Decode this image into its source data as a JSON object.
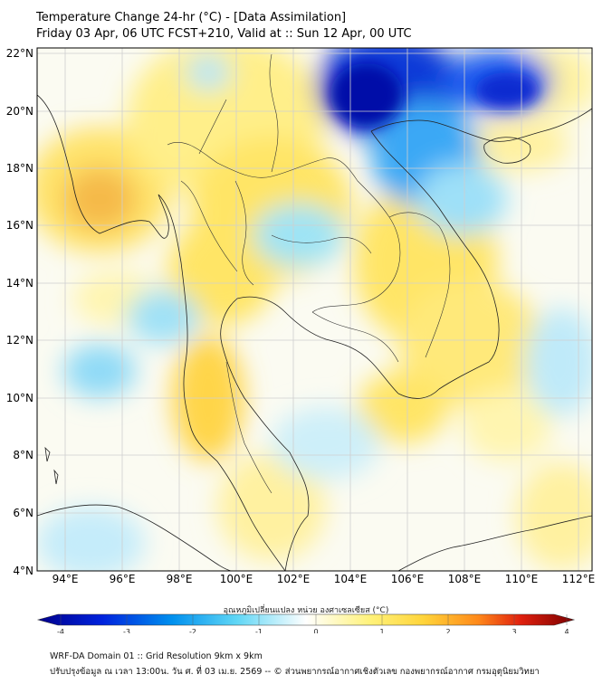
{
  "header": {
    "title": "Temperature Change 24-hr (°C) - [Data Assimilation]",
    "subtitle": "Friday 03 Apr, 06 UTC FCST+210, Valid at :: Sun 12 Apr, 00 UTC"
  },
  "map": {
    "lat_labels": [
      "22°N",
      "20°N",
      "18°N",
      "16°N",
      "14°N",
      "12°N",
      "10°N",
      "8°N",
      "6°N",
      "4°N"
    ],
    "lon_labels": [
      "94°E",
      "96°E",
      "98°E",
      "100°E",
      "102°E",
      "104°E",
      "106°E",
      "108°E",
      "110°E",
      "112°E"
    ],
    "lat_range": [
      4,
      22
    ],
    "lon_range": [
      93,
      112.5
    ],
    "gridlines": true
  },
  "colorbar": {
    "title": "อุณหภูมิเปลี่ยนแปลง หน่วย องศาเซลเซียส (°C)",
    "ticks": [
      "-4",
      "-3",
      "-2",
      "-1",
      "0",
      "1",
      "2",
      "3",
      "4"
    ],
    "range": [
      -4,
      4
    ],
    "colors": {
      "deep_negative": "#00008b",
      "negative": "#00aaff",
      "neutral": "#ffffff",
      "positive": "#ffe24a",
      "deep_positive": "#8b0000"
    }
  },
  "footer": {
    "line1": "WRF-DA Domain 01 :: Grid Resolution 9km x 9km",
    "line2": "ปรับปรุงข้อมูล ณ เวลา 13:00น. วัน ศ. ที่ 03 เม.ย. 2569 -- © ส่วนพยากรณ์อากาศเชิงตัวเลข กองพยากรณ์อากาศ กรมอุตุนิยมวิทยา"
  }
}
